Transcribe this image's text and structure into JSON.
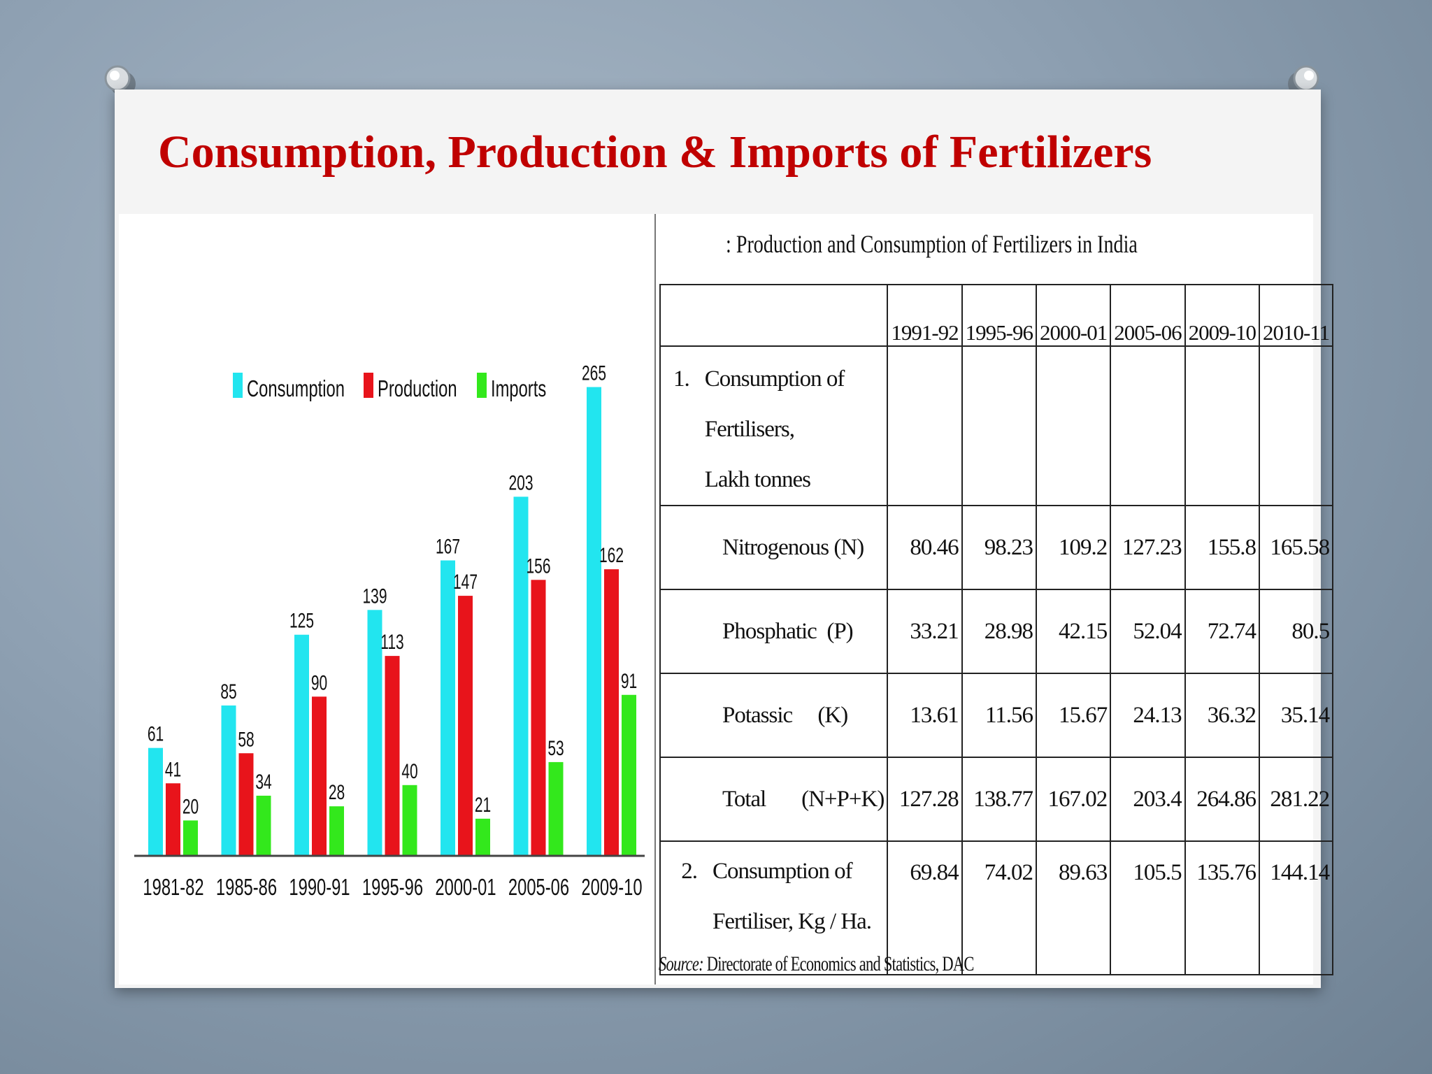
{
  "slide": {
    "title": "Consumption, Production & Imports of Fertilizers"
  },
  "chart_data": {
    "type": "bar",
    "title": "",
    "xlabel": "",
    "ylabel": "",
    "legend_position": "top",
    "grid": false,
    "ylim": [
      0,
      280
    ],
    "categories": [
      "1981-82",
      "1985-86",
      "1990-91",
      "1995-96",
      "2000-01",
      "2005-06",
      "2009-10"
    ],
    "series": [
      {
        "name": "Consumption",
        "color": "#22e5ef",
        "values": [
          61,
          85,
          125,
          139,
          167,
          203,
          265
        ]
      },
      {
        "name": "Production",
        "color": "#e8141b",
        "values": [
          41,
          58,
          90,
          113,
          147,
          156,
          162
        ]
      },
      {
        "name": "Imports",
        "color": "#33e81c",
        "values": [
          20,
          34,
          28,
          40,
          21,
          53,
          91
        ]
      }
    ]
  },
  "table": {
    "title": ": Production and Consumption of Fertilizers in India",
    "columns": [
      "1991-92",
      "1995-96",
      "2000-01",
      "2005-06",
      "2009-10",
      "2010-11"
    ],
    "section1": {
      "index": "1.",
      "label_line1": "Consumption of  Fertilisers,",
      "label_line2": "Lakh tonnes"
    },
    "rows": [
      {
        "label": "Nitrogenous (N)",
        "values": [
          "80.46",
          "98.23",
          "109.2",
          "127.23",
          "155.8",
          "165.58"
        ]
      },
      {
        "label": "Phosphatic  (P)",
        "values": [
          "33.21",
          "28.98",
          "42.15",
          "52.04",
          "72.74",
          "80.5"
        ]
      },
      {
        "label": "Potassic     (K)",
        "values": [
          "13.61",
          "11.56",
          "15.67",
          "24.13",
          "36.32",
          "35.14"
        ]
      },
      {
        "label": "Total       (N+P+K)",
        "values": [
          "127.28",
          "138.77",
          "167.02",
          "203.4",
          "264.86",
          "281.22"
        ]
      }
    ],
    "section2": {
      "index": "2.",
      "label_line1": "Consumption of",
      "label_line2": "Fertiliser, Kg / Ha.",
      "values": [
        "69.84",
        "74.02",
        "89.63",
        "105.5",
        "135.76",
        "144.14"
      ]
    },
    "source_prefix": "Source:",
    "source_text": " Directorate of Economics and Statistics, DAC"
  }
}
